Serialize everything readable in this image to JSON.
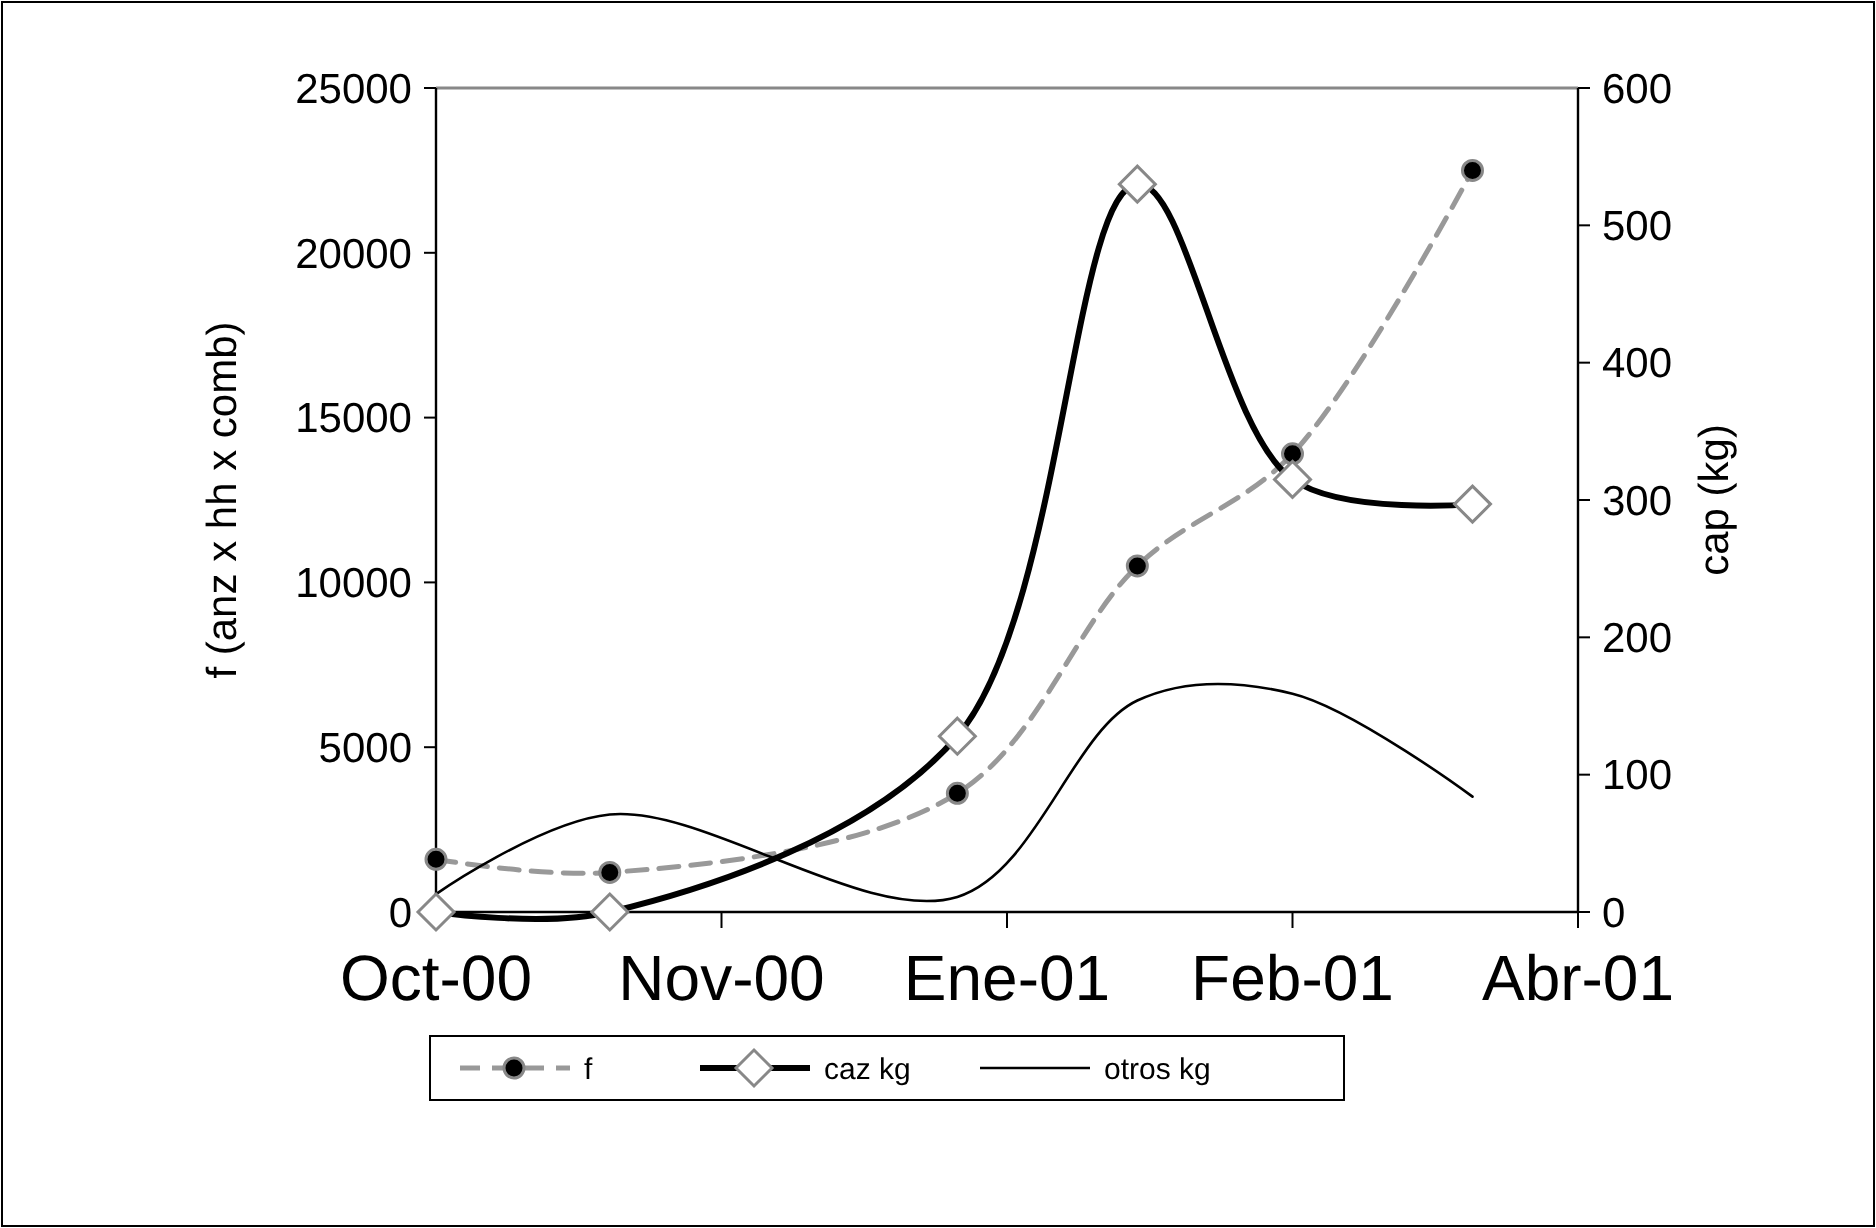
{
  "chart_data": {
    "type": "line",
    "ylabel": "f (anz x hh x comb)",
    "y2label": "cap (kg)",
    "x": [
      "2000-10-01",
      "2000-10-29",
      "2000-12-24",
      "2001-01-22",
      "2001-02-16",
      "2001-03-17"
    ],
    "xlim": [
      "2000-10-01",
      "2001-04-03"
    ],
    "xticks": [
      {
        "value": "2000-10-01",
        "label": "Oct-00"
      },
      {
        "value": "2000-11-16",
        "label": "Nov-00"
      },
      {
        "value": "2001-01-01",
        "label": "Ene-01"
      },
      {
        "value": "2001-02-16",
        "label": "Feb-01"
      },
      {
        "value": "2001-04-03",
        "label": "Abr-01"
      }
    ],
    "ylim": [
      0,
      25000
    ],
    "yticks": [
      0,
      5000,
      10000,
      15000,
      20000,
      25000
    ],
    "y2lim": [
      0,
      600
    ],
    "y2ticks": [
      0,
      100,
      200,
      300,
      400,
      500,
      600
    ],
    "series": [
      {
        "name": "f",
        "color": "#999999",
        "marker": "circle",
        "line_style": "dashed",
        "values": [
          1600,
          1200,
          3600,
          10500,
          13900,
          22500
        ]
      },
      {
        "name": "caz kg",
        "color": "#000000",
        "marker": "diamond",
        "line_style": "solid",
        "axis": "y2",
        "values": [
          0,
          0,
          128,
          530,
          315,
          297
        ]
      },
      {
        "name": "otros kg",
        "color": "#000000",
        "marker": "none",
        "line_style": "solid",
        "axis": "y2",
        "values": [
          13,
          71,
          11,
          154,
          159,
          84
        ]
      }
    ],
    "grid": false,
    "legend": "bottom"
  }
}
